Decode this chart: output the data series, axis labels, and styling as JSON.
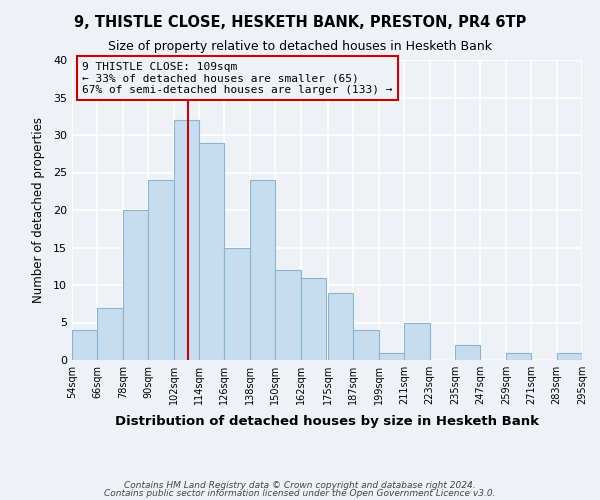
{
  "title": "9, THISTLE CLOSE, HESKETH BANK, PRESTON, PR4 6TP",
  "subtitle": "Size of property relative to detached houses in Hesketh Bank",
  "xlabel": "Distribution of detached houses by size in Hesketh Bank",
  "ylabel": "Number of detached properties",
  "bar_color": "#c5ddef",
  "bar_edge_color": "#8ab4d4",
  "background_color": "#eef2f7",
  "grid_color": "#ffffff",
  "bins": [
    54,
    66,
    78,
    90,
    102,
    114,
    126,
    138,
    150,
    162,
    175,
    187,
    199,
    211,
    223,
    235,
    247,
    259,
    271,
    283,
    295
  ],
  "counts": [
    4,
    7,
    20,
    24,
    32,
    29,
    15,
    24,
    12,
    11,
    9,
    4,
    1,
    5,
    0,
    2,
    0,
    1,
    0,
    1
  ],
  "tick_labels": [
    "54sqm",
    "66sqm",
    "78sqm",
    "90sqm",
    "102sqm",
    "114sqm",
    "126sqm",
    "138sqm",
    "150sqm",
    "162sqm",
    "175sqm",
    "187sqm",
    "199sqm",
    "211sqm",
    "223sqm",
    "235sqm",
    "247sqm",
    "259sqm",
    "271sqm",
    "283sqm",
    "295sqm"
  ],
  "property_line_x": 109,
  "property_line_color": "#cc0000",
  "annotation_line1": "9 THISTLE CLOSE: 109sqm",
  "annotation_line2": "← 33% of detached houses are smaller (65)",
  "annotation_line3": "67% of semi-detached houses are larger (133) →",
  "annotation_box_edgecolor": "#cc0000",
  "ylim": [
    0,
    40
  ],
  "yticks": [
    0,
    5,
    10,
    15,
    20,
    25,
    30,
    35,
    40
  ],
  "footer_line1": "Contains HM Land Registry data © Crown copyright and database right 2024.",
  "footer_line2": "Contains public sector information licensed under the Open Government Licence v3.0."
}
